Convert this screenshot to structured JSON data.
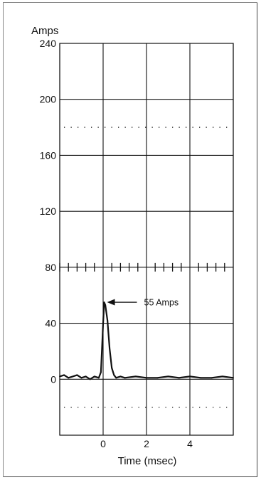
{
  "chart_data": {
    "type": "line",
    "title": "",
    "ylabel": "Amps",
    "xlabel": "Time (msec)",
    "xlim": [
      -2,
      6
    ],
    "ylim": [
      -40,
      240
    ],
    "yticks": [
      0,
      40,
      80,
      120,
      160,
      200,
      240
    ],
    "xticks": [
      0,
      2,
      4
    ],
    "grid": true,
    "reference_lines": [
      180,
      -20
    ],
    "trigger_marks_y": 80,
    "trigger_marks_x": [
      -2,
      -1.6,
      -1.2,
      -0.8,
      -0.4,
      0.4,
      0.8,
      1.2,
      1.6,
      2.4,
      2.8,
      3.2,
      3.6,
      4.4,
      4.8,
      5.2,
      5.6
    ],
    "series": [
      {
        "x": [
          -2,
          -1.8,
          -1.6,
          -1.4,
          -1.2,
          -1.0,
          -0.8,
          -0.6,
          -0.4,
          -0.2,
          -0.1,
          0.0,
          0.05,
          0.1,
          0.2,
          0.3,
          0.4,
          0.5,
          0.6,
          0.8,
          1.0,
          1.5,
          2.0,
          2.5,
          3.0,
          3.5,
          4.0,
          4.5,
          5.0,
          5.5,
          6.0
        ],
        "values": [
          2,
          3,
          1,
          2,
          3,
          1,
          2,
          0,
          2,
          1,
          5,
          40,
          55,
          53,
          42,
          22,
          8,
          3,
          1,
          2,
          1,
          2,
          1,
          1,
          2,
          1,
          2,
          1,
          1,
          2,
          1
        ]
      }
    ],
    "annotations": [
      {
        "text": "55 Amps",
        "x": 0.05,
        "y": 55
      }
    ]
  }
}
